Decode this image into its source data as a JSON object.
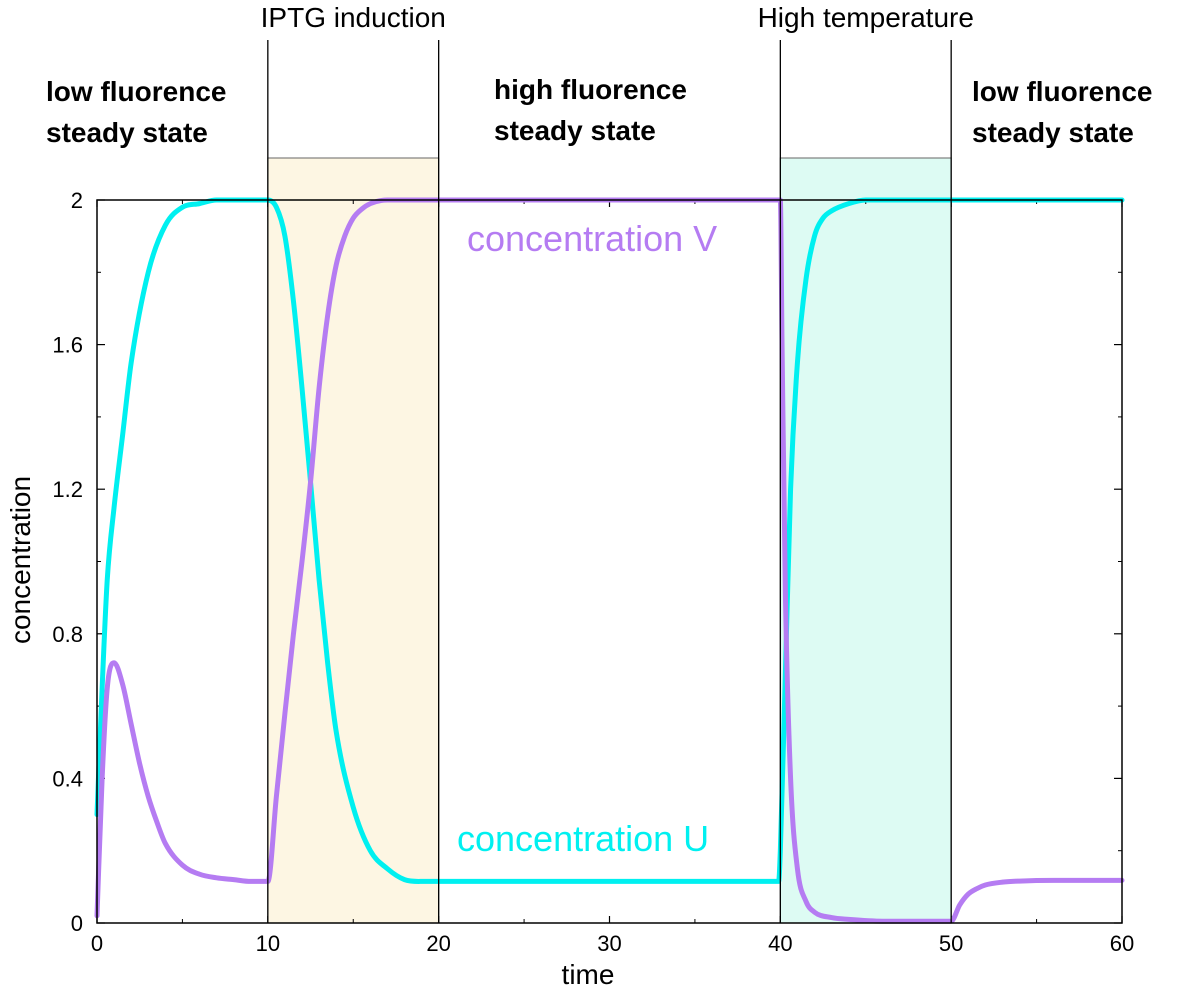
{
  "chart_data": {
    "type": "line",
    "xlabel": "time",
    "ylabel": "concentration",
    "xlim": [
      0,
      60
    ],
    "ylim": [
      0,
      2
    ],
    "x_ticks": [
      0,
      10,
      20,
      30,
      40,
      50,
      60
    ],
    "x_tick_labels": [
      "0",
      "10",
      "20",
      "30",
      "40",
      "50",
      "60"
    ],
    "y_ticks": [
      0,
      0.4,
      0.8,
      1.2,
      1.6,
      2
    ],
    "y_tick_labels": [
      "0",
      "0.4",
      "0.8",
      "1.2",
      "1.6",
      "2"
    ],
    "grid": false,
    "shaded_intervals": [
      {
        "x0": 10,
        "x1": 20,
        "color": "#fdf6e3"
      },
      {
        "x0": 40,
        "x1": 50,
        "color": "#ddfbf3"
      }
    ],
    "event_labels": [
      {
        "text": "IPTG induction",
        "x_center": 15
      },
      {
        "text": "High temperature",
        "x_center": 45
      }
    ],
    "phase_lines_x": [
      10,
      20,
      40,
      50
    ],
    "state_labels": [
      {
        "line1": "low fluorence",
        "line2": "steady state"
      },
      {
        "line1": "high fluorence",
        "line2": "steady state"
      },
      {
        "line1": "low fluorence",
        "line2": "steady state"
      }
    ],
    "series": [
      {
        "name": "concentration U",
        "color": "#00f0f0",
        "x": [
          0,
          0.3,
          0.6,
          1,
          1.5,
          2,
          3,
          4,
          5,
          6,
          7,
          8,
          10,
          10.5,
          11,
          11.5,
          12,
          12.5,
          13,
          13.5,
          14,
          15,
          16,
          17,
          18,
          19,
          20,
          25,
          30,
          35,
          39.9,
          40,
          40.3,
          40.6,
          41,
          41.5,
          42,
          42.5,
          43,
          44,
          45,
          46,
          48,
          50,
          55,
          60
        ],
        "values": [
          0.3,
          0.65,
          0.95,
          1.15,
          1.35,
          1.55,
          1.8,
          1.93,
          1.98,
          1.99,
          2,
          2,
          2,
          1.98,
          1.9,
          1.72,
          1.48,
          1.22,
          0.95,
          0.72,
          0.53,
          0.32,
          0.2,
          0.15,
          0.12,
          0.115,
          0.115,
          0.115,
          0.115,
          0.115,
          0.115,
          0.2,
          0.7,
          1.2,
          1.55,
          1.78,
          1.9,
          1.95,
          1.97,
          1.99,
          2,
          2,
          2,
          2,
          2,
          2
        ]
      },
      {
        "name": "concentration V",
        "color": "#b57cf2",
        "x": [
          0,
          0.3,
          0.6,
          1,
          1.5,
          2,
          2.5,
          3,
          3.5,
          4,
          5,
          6,
          7,
          8,
          9,
          10,
          10.5,
          11,
          11.5,
          12,
          12.5,
          13,
          13.5,
          14,
          14.5,
          15,
          15.5,
          16,
          17,
          18,
          19,
          20,
          30,
          40,
          40.1,
          40.3,
          40.6,
          41,
          41.5,
          42,
          43,
          44,
          46,
          48,
          50,
          50.5,
          51,
          51.5,
          52,
          53,
          54,
          56,
          58,
          60
        ],
        "values": [
          0.02,
          0.4,
          0.65,
          0.72,
          0.66,
          0.55,
          0.44,
          0.35,
          0.28,
          0.22,
          0.16,
          0.135,
          0.125,
          0.12,
          0.115,
          0.115,
          0.35,
          0.58,
          0.8,
          1.0,
          1.22,
          1.48,
          1.68,
          1.82,
          1.9,
          1.95,
          1.975,
          1.99,
          2,
          2,
          2,
          2,
          2,
          2,
          1.6,
          0.9,
          0.4,
          0.15,
          0.06,
          0.03,
          0.015,
          0.01,
          0.005,
          0.005,
          0.005,
          0.05,
          0.08,
          0.095,
          0.105,
          0.113,
          0.116,
          0.118,
          0.118,
          0.118
        ]
      }
    ],
    "series_labels": [
      {
        "text": "concentration V",
        "color": "#b57cf2"
      },
      {
        "text": "concentration U",
        "color": "#00f0f0"
      }
    ]
  }
}
